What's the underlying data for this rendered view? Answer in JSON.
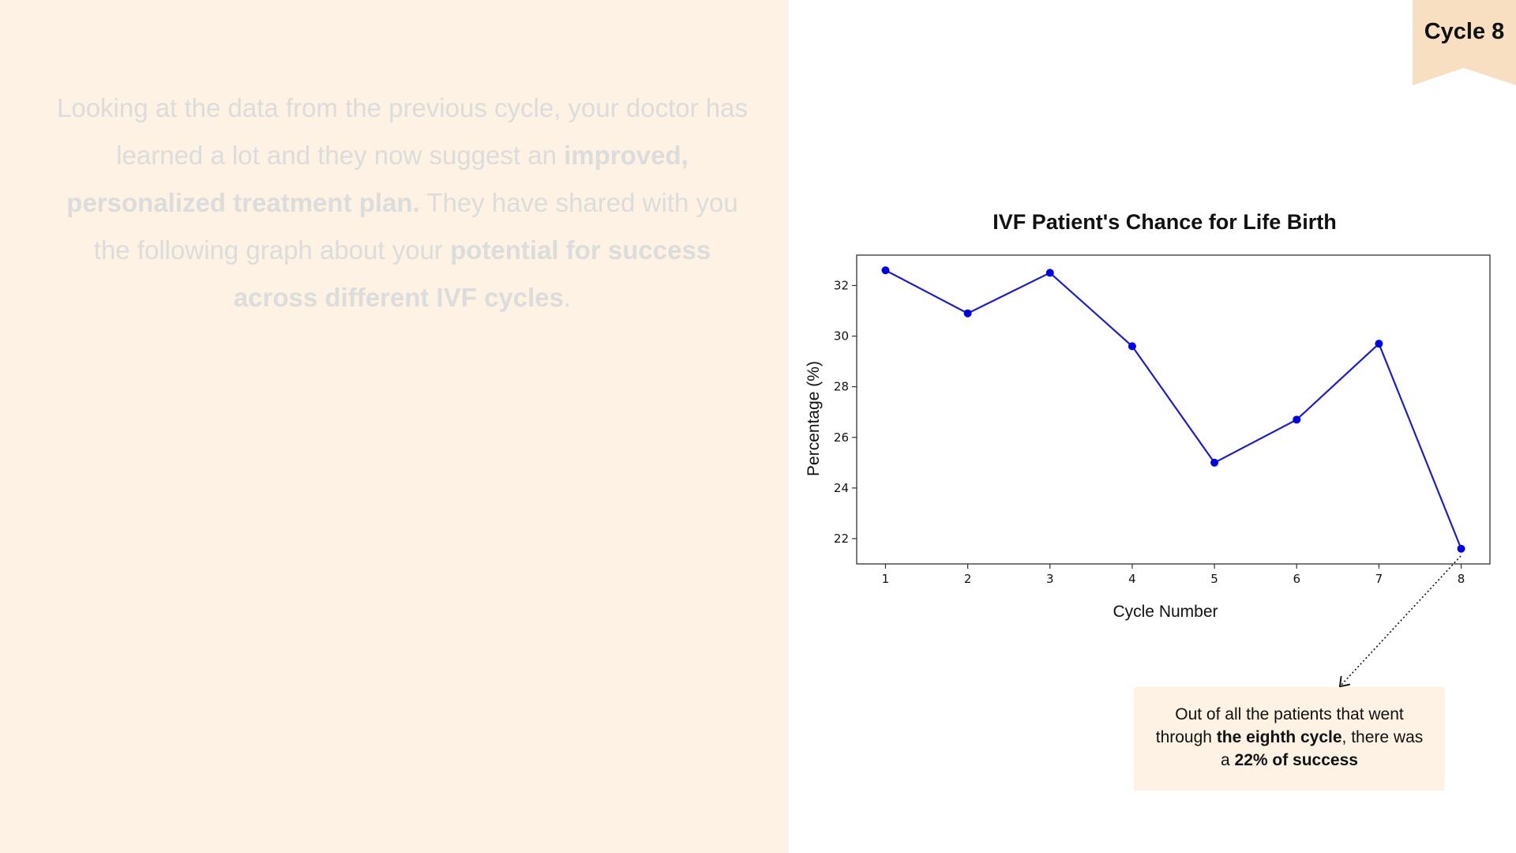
{
  "intro": {
    "t1": "Looking at the data from the previous cycle, your doctor has learned a lot and they now suggest an ",
    "b1": "improved, personalized treatment plan.",
    "t2": " They have shared with you the following graph about your ",
    "b2": "potential for success across different IVF cycles",
    "t3": "."
  },
  "badge": {
    "label": "Cycle 8"
  },
  "chart_data": {
    "type": "line",
    "title": "IVF Patient's Chance for Life Birth",
    "xlabel": "Cycle Number",
    "ylabel": "Percentage (%)",
    "x": [
      1,
      2,
      3,
      4,
      5,
      6,
      7,
      8
    ],
    "values": [
      32.6,
      30.9,
      32.5,
      29.6,
      25.0,
      26.7,
      29.7,
      21.6
    ],
    "xlim": [
      0.65,
      8.35
    ],
    "ylim": [
      21.0,
      33.2
    ],
    "xticks": [
      "1",
      "2",
      "3",
      "4",
      "5",
      "6",
      "7",
      "8"
    ],
    "yticks": [
      "22",
      "24",
      "26",
      "28",
      "30",
      "32"
    ],
    "ytick_values": [
      22,
      24,
      26,
      28,
      30,
      32
    ],
    "grid": false,
    "line_color": "#1f1fbf",
    "marker_color": "#0000dd"
  },
  "callout": {
    "t1": "Out of all the patients that went through ",
    "b1": "the eighth cycle",
    "t2": ", there was a ",
    "b2": "22% of success"
  },
  "colors": {
    "panel_bg": "#fdf2e3",
    "badge_bg": "#f8dfc1",
    "muted_text": "#dcdcdc"
  }
}
